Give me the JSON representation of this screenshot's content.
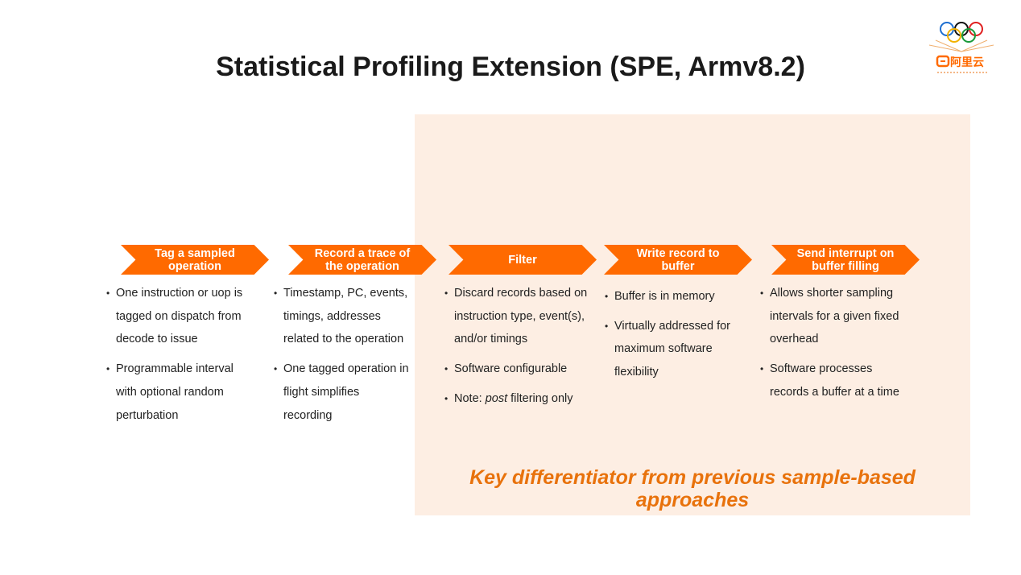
{
  "title": "Statistical Profiling Extension (SPE, Armv8.2)",
  "logo": {
    "brand_text": "阿里云"
  },
  "stages": [
    {
      "label_line1": "Tag a sampled",
      "label_line2": "operation"
    },
    {
      "label_line1": "Record a trace of",
      "label_line2": "the operation"
    },
    {
      "label_line1": "Filter",
      "label_line2": ""
    },
    {
      "label_line1": "Write record to",
      "label_line2": "buffer"
    },
    {
      "label_line1": "Send interrupt on",
      "label_line2": "buffer filling"
    }
  ],
  "columns": [
    {
      "bullets": [
        "One instruction or uop is tagged on dispatch from decode to issue",
        "Programmable interval with optional random perturbation"
      ]
    },
    {
      "bullets": [
        "Timestamp, PC, events, timings, addresses related to the operation",
        "One tagged operation in flight simplifies recording"
      ]
    },
    {
      "bullets": [
        "Discard records based on instruction type, event(s), and/or timings",
        "Software configurable"
      ],
      "note": {
        "prefix": "Note: ",
        "emph": "post",
        "suffix": " filtering only"
      }
    },
    {
      "bullets": [
        "Buffer is in memory",
        "Virtually addressed for maximum software flexibility"
      ]
    },
    {
      "bullets": [
        "Allows shorter sampling intervals for a given fixed overhead",
        "Software processes records a buffer at a time"
      ]
    }
  ],
  "key_text_line1": "Key differentiator from previous sample-based",
  "key_text_line2": "approaches",
  "colors": {
    "accent": "#ff6a00",
    "highlight_bg": "#fdeee3",
    "key_text": "#e8720c"
  }
}
